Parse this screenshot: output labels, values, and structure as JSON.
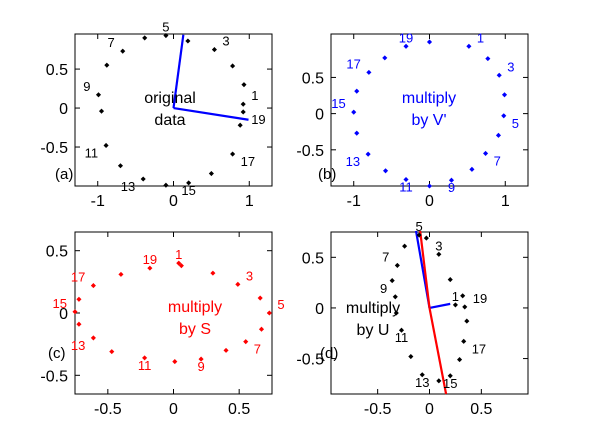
{
  "chart_data": [
    {
      "type": "scatter",
      "panel_tag": "(a)",
      "color": "#000000",
      "xlim": [
        -1.3,
        1.3
      ],
      "ylim": [
        -1.0,
        0.95
      ],
      "xticks": [
        -1,
        0,
        1
      ],
      "yticks": [
        -0.5,
        0,
        0.5
      ],
      "xtick_labels": [
        "-1",
        "0",
        "1"
      ],
      "ytick_labels": [
        "-0.5",
        "0",
        "0.5"
      ],
      "annotation_lines": [
        "original",
        "data"
      ],
      "annotation_color": "#000000",
      "points": [
        {
          "x": 0.88,
          "y": -0.22
        },
        {
          "x": 0.92,
          "y": 0.05,
          "label": "1"
        },
        {
          "x": 0.93,
          "y": 0.3
        },
        {
          "x": 0.78,
          "y": 0.54
        },
        {
          "x": 0.54,
          "y": 0.75,
          "label": "3"
        },
        {
          "x": 0.19,
          "y": 0.86
        },
        {
          "x": -0.1,
          "y": 0.93,
          "label": "5"
        },
        {
          "x": -0.38,
          "y": 0.9
        },
        {
          "x": -0.67,
          "y": 0.73,
          "label": "7"
        },
        {
          "x": -0.88,
          "y": 0.55
        },
        {
          "x": -0.99,
          "y": 0.17,
          "label": "9"
        },
        {
          "x": -0.95,
          "y": -0.04
        },
        {
          "x": -0.89,
          "y": -0.48,
          "label": "11"
        },
        {
          "x": -0.7,
          "y": -0.74
        },
        {
          "x": -0.4,
          "y": -0.91,
          "label": "13"
        },
        {
          "x": -0.1,
          "y": -0.99
        },
        {
          "x": 0.2,
          "y": -0.96,
          "label": "15"
        },
        {
          "x": 0.5,
          "y": -0.84
        },
        {
          "x": 0.78,
          "y": -0.59,
          "label": "17"
        },
        {
          "x": 0.92,
          "y": -0.05,
          "label": "19"
        }
      ],
      "vector_color": "#0000ff",
      "vectors": [
        {
          "x": 0.13,
          "y": 0.94
        },
        {
          "x": 0.99,
          "y": -0.15
        }
      ]
    },
    {
      "type": "scatter",
      "panel_tag": "(b)",
      "color": "#0000ff",
      "xlim": [
        -1.3,
        1.3
      ],
      "ylim": [
        -1.0,
        1.1
      ],
      "xticks": [
        -1,
        0,
        1
      ],
      "yticks": [
        -0.5,
        0,
        0.5
      ],
      "xtick_labels": [
        "-1",
        "0",
        "1"
      ],
      "ytick_labels": [
        "-0.5",
        "0",
        "0.5"
      ],
      "annotation_lines": [
        "multiply",
        "by V'"
      ],
      "annotation_color": "#0000ff",
      "points": [
        {
          "x": 0.52,
          "y": 0.93,
          "label": "1"
        },
        {
          "x": 0.77,
          "y": 0.76
        },
        {
          "x": 0.92,
          "y": 0.53,
          "label": "3"
        },
        {
          "x": 0.99,
          "y": 0.26
        },
        {
          "x": 0.98,
          "y": -0.03,
          "label": "5"
        },
        {
          "x": 0.91,
          "y": -0.3
        },
        {
          "x": 0.74,
          "y": -0.55,
          "label": "7"
        },
        {
          "x": 0.56,
          "y": -0.77
        },
        {
          "x": 0.29,
          "y": -0.92,
          "label": "9"
        },
        {
          "x": 0.0,
          "y": -1.0
        },
        {
          "x": -0.31,
          "y": -0.91,
          "label": "11"
        },
        {
          "x": -0.58,
          "y": -0.79
        },
        {
          "x": -0.81,
          "y": -0.56,
          "label": "13"
        },
        {
          "x": -0.96,
          "y": -0.27
        },
        {
          "x": -1.0,
          "y": 0.02,
          "label": "15"
        },
        {
          "x": -0.96,
          "y": 0.31
        },
        {
          "x": -0.8,
          "y": 0.57,
          "label": "17"
        },
        {
          "x": -0.59,
          "y": 0.77
        },
        {
          "x": -0.31,
          "y": 0.93,
          "label": "19"
        },
        {
          "x": 0.0,
          "y": 0.99
        }
      ]
    },
    {
      "type": "scatter",
      "panel_tag": "(c)",
      "color": "#ff0000",
      "xlim": [
        -0.75,
        0.75
      ],
      "ylim": [
        -0.65,
        0.65
      ],
      "xticks": [
        -0.5,
        0,
        0.5
      ],
      "yticks": [
        -0.5,
        0,
        0.5
      ],
      "xtick_labels": [
        "-0.5",
        "0",
        "0.5"
      ],
      "ytick_labels": [
        "-0.5",
        "0",
        "0.5"
      ],
      "annotation_lines": [
        "multiply",
        "by S"
      ],
      "annotation_color": "#ff0000",
      "points": [
        {
          "x": 0.04,
          "y": 0.4,
          "label": "1"
        },
        {
          "x": 0.3,
          "y": 0.32
        },
        {
          "x": 0.49,
          "y": 0.23,
          "label": "3"
        },
        {
          "x": 0.66,
          "y": 0.12
        },
        {
          "x": 0.73,
          "y": 0.0,
          "label": "5"
        },
        {
          "x": 0.67,
          "y": -0.13
        },
        {
          "x": 0.55,
          "y": -0.23,
          "label": "7"
        },
        {
          "x": 0.4,
          "y": -0.3
        },
        {
          "x": 0.21,
          "y": -0.37,
          "label": "9"
        },
        {
          "x": 0.01,
          "y": -0.39
        },
        {
          "x": -0.22,
          "y": -0.36,
          "label": "11"
        },
        {
          "x": -0.47,
          "y": -0.31
        },
        {
          "x": -0.61,
          "y": -0.2,
          "label": "13"
        },
        {
          "x": -0.72,
          "y": -0.09
        },
        {
          "x": -0.75,
          "y": 0.01,
          "label": "15"
        },
        {
          "x": -0.72,
          "y": 0.11
        },
        {
          "x": -0.61,
          "y": 0.22,
          "label": "17"
        },
        {
          "x": -0.4,
          "y": 0.31
        },
        {
          "x": -0.18,
          "y": 0.36,
          "label": "19"
        },
        {
          "x": 0.06,
          "y": 0.38
        }
      ]
    },
    {
      "type": "scatter",
      "panel_tag": "(d)",
      "color": "#000000",
      "xlim": [
        -0.95,
        0.95
      ],
      "ylim": [
        -0.85,
        0.75
      ],
      "xticks": [
        -0.5,
        0,
        0.5
      ],
      "yticks": [
        -0.5,
        0,
        0.5
      ],
      "xtick_labels": [
        "-0.5",
        "0",
        "0.5"
      ],
      "ytick_labels": [
        "-0.5",
        "0",
        "0.5"
      ],
      "annotation_lines": [
        "multiply",
        "by U"
      ],
      "annotation_color": "#000000",
      "points": [
        {
          "x": 0.25,
          "y": 0.03,
          "label": "1"
        },
        {
          "x": 0.2,
          "y": 0.28
        },
        {
          "x": 0.09,
          "y": 0.53,
          "label": "3"
        },
        {
          "x": -0.03,
          "y": 0.69
        },
        {
          "x": -0.1,
          "y": 0.72,
          "label": "5"
        },
        {
          "x": -0.24,
          "y": 0.61
        },
        {
          "x": -0.31,
          "y": 0.42,
          "label": "7"
        },
        {
          "x": -0.36,
          "y": 0.27
        },
        {
          "x": -0.33,
          "y": 0.11,
          "label": "9"
        },
        {
          "x": -0.32,
          "y": -0.05
        },
        {
          "x": -0.27,
          "y": -0.22,
          "label": "11"
        },
        {
          "x": -0.18,
          "y": -0.48
        },
        {
          "x": -0.07,
          "y": -0.66,
          "label": "13"
        },
        {
          "x": 0.09,
          "y": -0.72
        },
        {
          "x": 0.2,
          "y": -0.67,
          "label": "15"
        },
        {
          "x": 0.29,
          "y": -0.51
        },
        {
          "x": 0.33,
          "y": -0.33,
          "label": "17"
        },
        {
          "x": 0.36,
          "y": -0.13
        },
        {
          "x": 0.34,
          "y": 0.01,
          "label": "19"
        },
        {
          "x": 0.32,
          "y": 0.12
        }
      ],
      "vectors": [
        {
          "x": -0.13,
          "y": 0.76,
          "color": "#0000ff"
        },
        {
          "x": 0.2,
          "y": 0.04,
          "color": "#0000ff"
        },
        {
          "x": 0.16,
          "y": -0.85,
          "color": "#ff0000"
        },
        {
          "x": -0.09,
          "y": 0.76,
          "color": "#ff0000"
        }
      ]
    }
  ]
}
